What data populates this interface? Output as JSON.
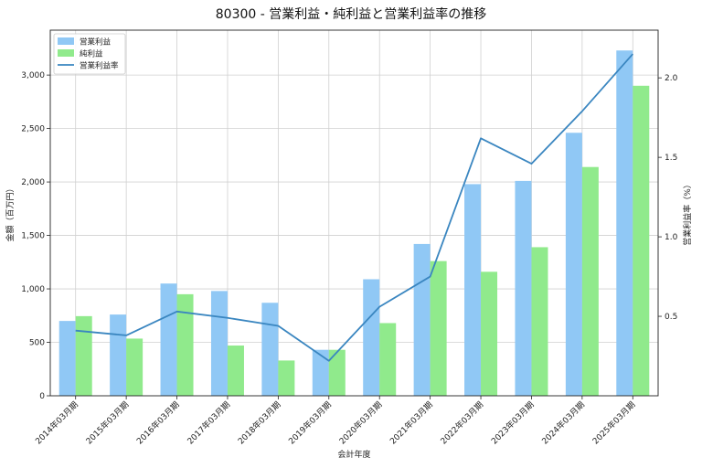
{
  "chart_data": {
    "type": "bar",
    "title": "80300 - 営業利益・純利益と営業利益率の推移",
    "xlabel": "会計年度",
    "ylabel": "金額（百万円）",
    "y2label": "営業利益率（%）",
    "categories": [
      "2014年03月期",
      "2015年03月期",
      "2016年03月期",
      "2017年03月期",
      "2018年03月期",
      "2019年03月期",
      "2020年03月期",
      "2021年03月期",
      "2022年03月期",
      "2023年03月期",
      "2024年03月期",
      "2025年03月期"
    ],
    "series": [
      {
        "name": "営業利益",
        "kind": "bar",
        "axis": "left",
        "color": "#90c8f5",
        "values": [
          700,
          760,
          1050,
          980,
          870,
          430,
          1090,
          1420,
          1980,
          2010,
          2460,
          3230
        ]
      },
      {
        "name": "純利益",
        "kind": "bar",
        "axis": "left",
        "color": "#90ea8c",
        "values": [
          745,
          535,
          950,
          470,
          330,
          430,
          680,
          1260,
          1160,
          1390,
          2140,
          2900
        ]
      },
      {
        "name": "営業利益率",
        "kind": "line",
        "axis": "right",
        "color": "#3a86c0",
        "values": [
          0.41,
          0.38,
          0.53,
          0.49,
          0.44,
          0.22,
          0.56,
          0.75,
          1.62,
          1.46,
          1.79,
          2.15
        ]
      }
    ],
    "ylim": [
      0,
      3420
    ],
    "yticks": [
      0,
      500,
      1000,
      1500,
      2000,
      2500,
      3000
    ],
    "ytick_labels": [
      "0",
      "500",
      "1,000",
      "1,500",
      "2,000",
      "2,500",
      "3,000"
    ],
    "y2lim": [
      0.0,
      2.3
    ],
    "y2ticks": [
      0.5,
      1.0,
      1.5,
      2.0
    ],
    "y2tick_labels": [
      "0.5",
      "1.0",
      "1.5",
      "2.0"
    ],
    "grid": true,
    "legend_position": "top-left"
  }
}
